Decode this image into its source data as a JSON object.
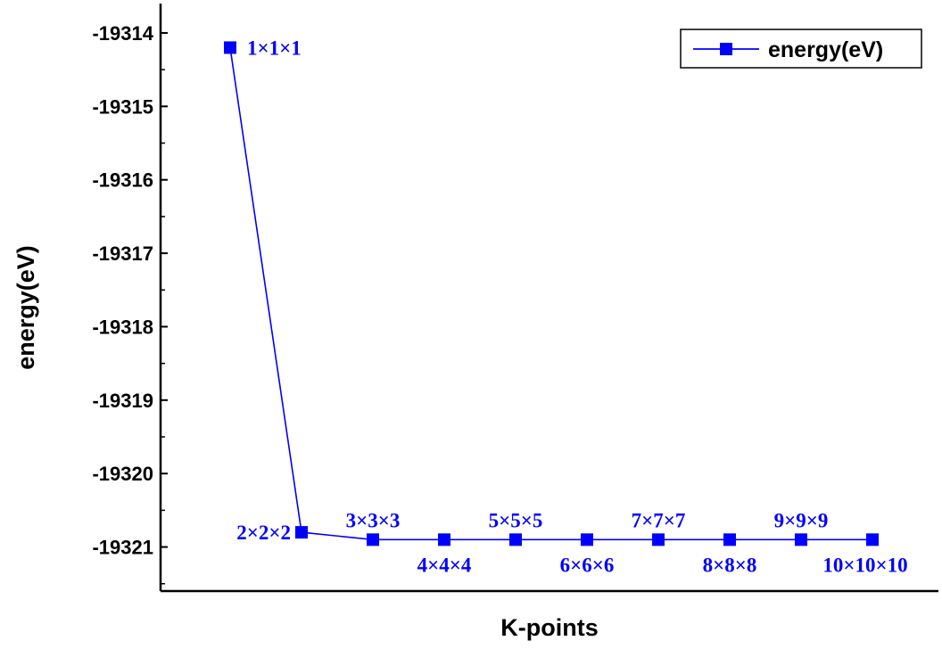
{
  "colors": {
    "series": "#0000ff",
    "axis": "#000000",
    "background": "#ffffff"
  },
  "chart_data": {
    "type": "line",
    "title": "",
    "xlabel": "K-points",
    "ylabel": "energy(eV)",
    "ylim": [
      -19321.6,
      -19313.6
    ],
    "y_ticks": [
      "-19314",
      "-19315",
      "-19316",
      "-19317",
      "-19318",
      "-19319",
      "-19320",
      "-19321"
    ],
    "y_tick_values": [
      -19314,
      -19315,
      -19316,
      -19317,
      -19318,
      -19319,
      -19320,
      -19321
    ],
    "legend_position": "top-right",
    "grid": false,
    "x_ticks_shown": false,
    "categories": [
      "1×1×1",
      "2×2×2",
      "3×3×3",
      "4×4×4",
      "5×5×5",
      "6×6×6",
      "7×7×7",
      "8×8×8",
      "9×9×9",
      "10×10×10"
    ],
    "series": [
      {
        "name": "energy(eV)",
        "marker": "square",
        "values": [
          -19314.2,
          -19320.8,
          -19320.9,
          -19320.9,
          -19320.9,
          -19320.9,
          -19320.9,
          -19320.9,
          -19320.9,
          -19320.9
        ]
      }
    ],
    "point_label_side": [
      "right",
      "left",
      "above",
      "below",
      "above",
      "below",
      "above",
      "below",
      "above",
      "below"
    ]
  }
}
